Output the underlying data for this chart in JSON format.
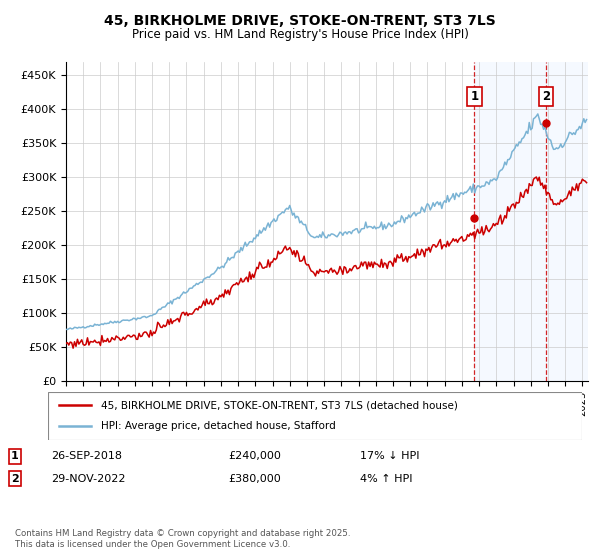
{
  "title1": "45, BIRKHOLME DRIVE, STOKE-ON-TRENT, ST3 7LS",
  "title2": "Price paid vs. HM Land Registry's House Price Index (HPI)",
  "legend1": "45, BIRKHOLME DRIVE, STOKE-ON-TRENT, ST3 7LS (detached house)",
  "legend2": "HPI: Average price, detached house, Stafford",
  "sale1_date_str": "26-SEP-2018",
  "sale1_price": 240000,
  "sale1_label": "17% ↓ HPI",
  "sale2_date_str": "29-NOV-2022",
  "sale2_price": 380000,
  "sale2_label": "4% ↑ HPI",
  "footnote": "Contains HM Land Registry data © Crown copyright and database right 2025.\nThis data is licensed under the Open Government Licence v3.0.",
  "hpi_color": "#7ab3d4",
  "price_color": "#cc0000",
  "dashed_line_color": "#cc0000",
  "highlight_bg": "#ddeeff",
  "ylim_min": 0,
  "ylim_max": 470000,
  "yticks": [
    0,
    50000,
    100000,
    150000,
    200000,
    250000,
    300000,
    350000,
    400000,
    450000
  ],
  "ytick_labels": [
    "£0",
    "£50K",
    "£100K",
    "£150K",
    "£200K",
    "£250K",
    "£300K",
    "£350K",
    "£400K",
    "£450K"
  ],
  "x_start_year": 1995,
  "x_end_year": 2025
}
